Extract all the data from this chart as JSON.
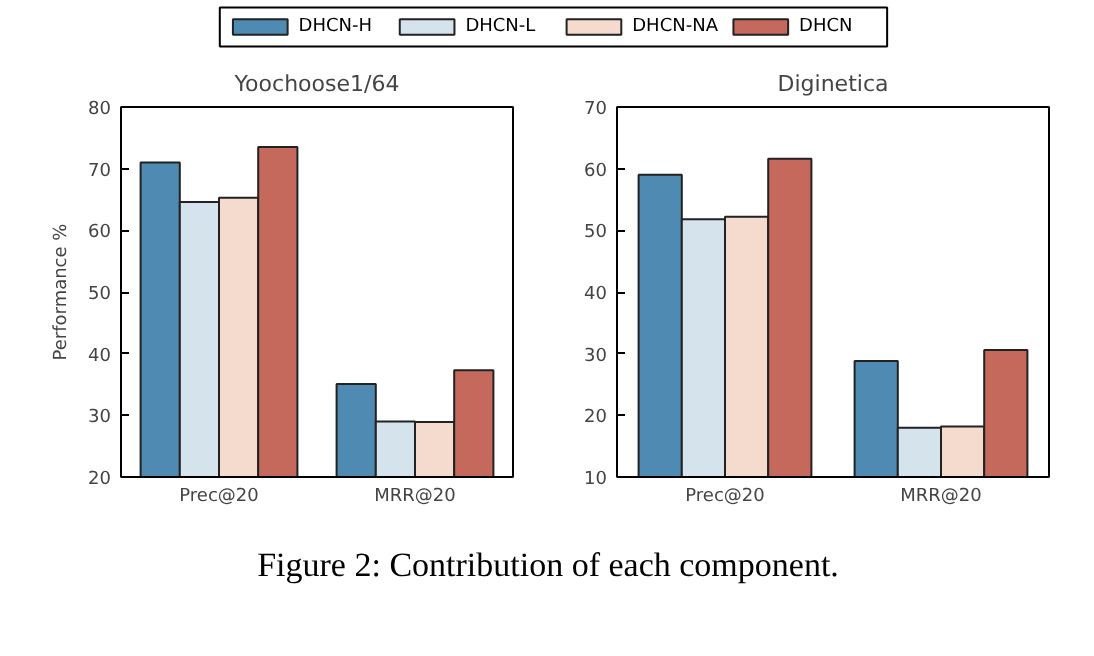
{
  "chart_data": [
    {
      "type": "bar",
      "title": "Yoochoose1/64",
      "ylabel": "Performance %",
      "categories": [
        "Prec@20",
        "MRR@20"
      ],
      "ylim": [
        20,
        80
      ],
      "yticks": [
        20,
        30,
        40,
        50,
        60,
        70,
        80
      ],
      "grid": false,
      "legend": "top",
      "annotations": [
        "Figure 2: Contribution of each component."
      ],
      "series": [
        {
          "name": "DHCN-H",
          "color": "#4f8ab3",
          "values": [
            71.0,
            35.1
          ]
        },
        {
          "name": "DHCN-L",
          "color": "#d4e3ec",
          "values": [
            64.6,
            29.0
          ]
        },
        {
          "name": "DHCN-NA",
          "color": "#f5dbcd",
          "values": [
            65.3,
            28.9
          ]
        },
        {
          "name": "DHCN",
          "color": "#c5695d",
          "values": [
            73.5,
            37.3
          ]
        }
      ]
    },
    {
      "type": "bar",
      "title": "Diginetica",
      "categories": [
        "Prec@20",
        "MRR@20"
      ],
      "ylim": [
        10,
        70
      ],
      "yticks": [
        10,
        20,
        30,
        40,
        50,
        60,
        70
      ],
      "grid": false,
      "series": [
        {
          "color": "#4f8ab3",
          "values": [
            59.0,
            28.8
          ]
        },
        {
          "color": "#d4e3ec",
          "values": [
            51.8,
            18.0
          ]
        },
        {
          "color": "#f5dbcd",
          "values": [
            52.2,
            18.2
          ]
        },
        {
          "color": "#c5695d",
          "values": [
            61.6,
            30.6
          ]
        }
      ]
    }
  ]
}
